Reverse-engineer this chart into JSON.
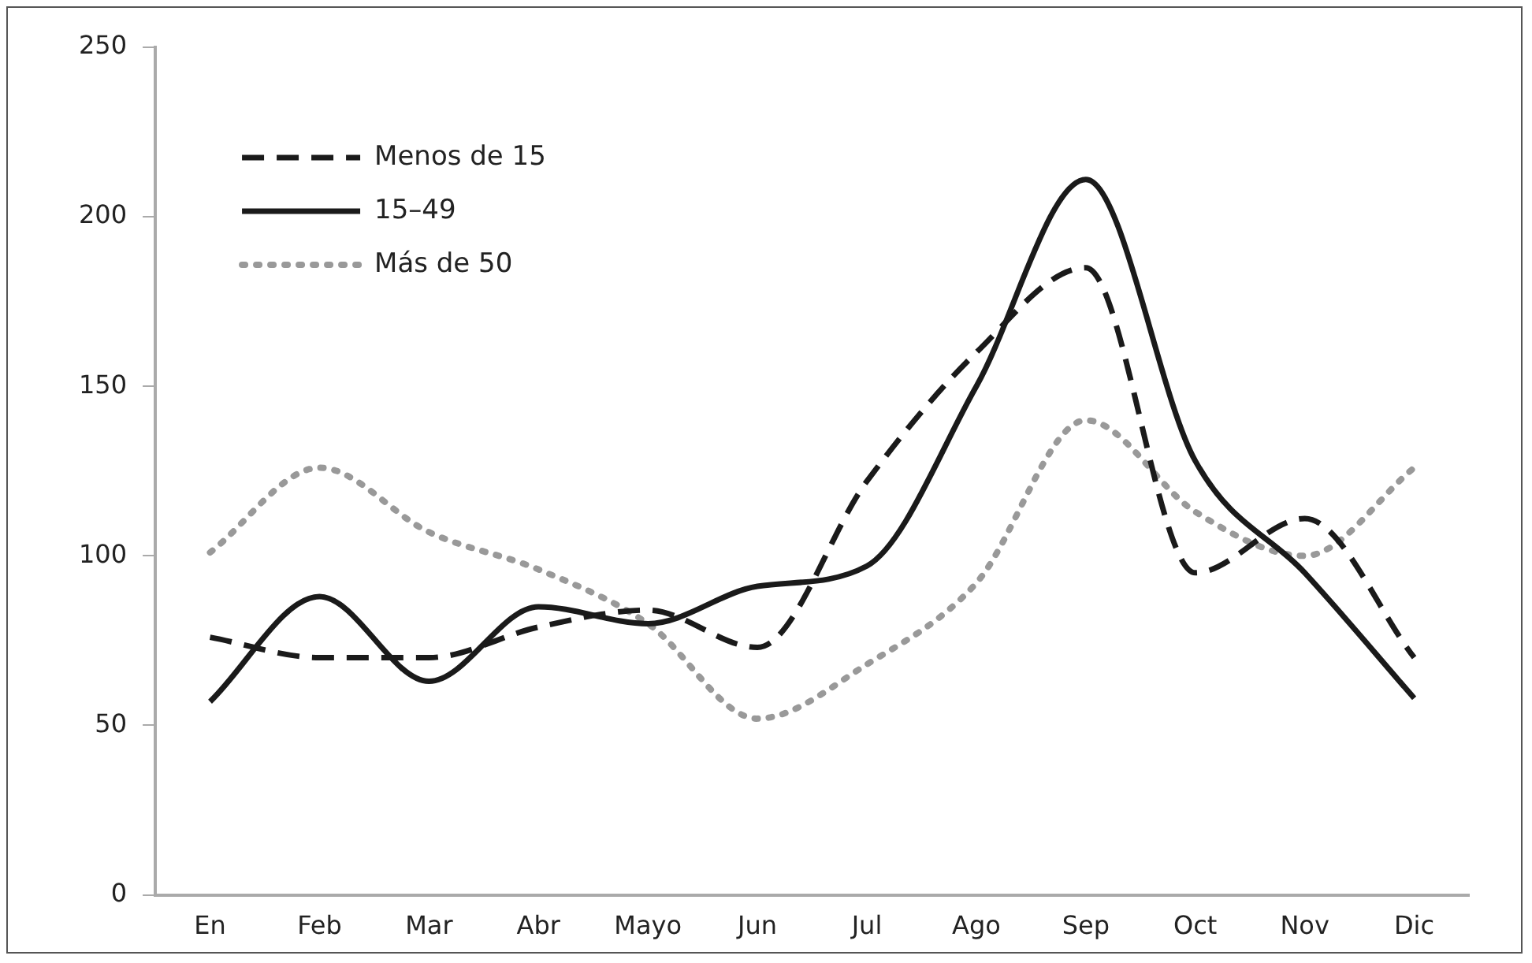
{
  "chart_data": {
    "type": "line",
    "categories": [
      "En",
      "Feb",
      "Mar",
      "Abr",
      "Mayo",
      "Jun",
      "Jul",
      "Ago",
      "Sep",
      "Oct",
      "Nov",
      "Dic"
    ],
    "series": [
      {
        "name": "Menos de 15",
        "color": "#1a1a1a",
        "line_style": "dashed",
        "values": [
          76,
          70,
          70,
          79,
          84,
          73,
          122,
          160,
          185,
          95,
          111,
          70
        ]
      },
      {
        "name": "15–49",
        "color": "#1a1a1a",
        "line_style": "solid",
        "values": [
          57,
          88,
          63,
          85,
          80,
          91,
          97,
          150,
          211,
          128,
          95,
          58
        ]
      },
      {
        "name": "Más de 50",
        "color": "#999999",
        "line_style": "dotted",
        "values": [
          101,
          126,
          107,
          96,
          80,
          52,
          68,
          92,
          140,
          113,
          100,
          126
        ]
      }
    ],
    "ylim": [
      0,
      250
    ],
    "yticks": [
      0,
      50,
      100,
      150,
      200,
      250
    ],
    "grid": false,
    "legend": "top left",
    "marker": "none"
  }
}
